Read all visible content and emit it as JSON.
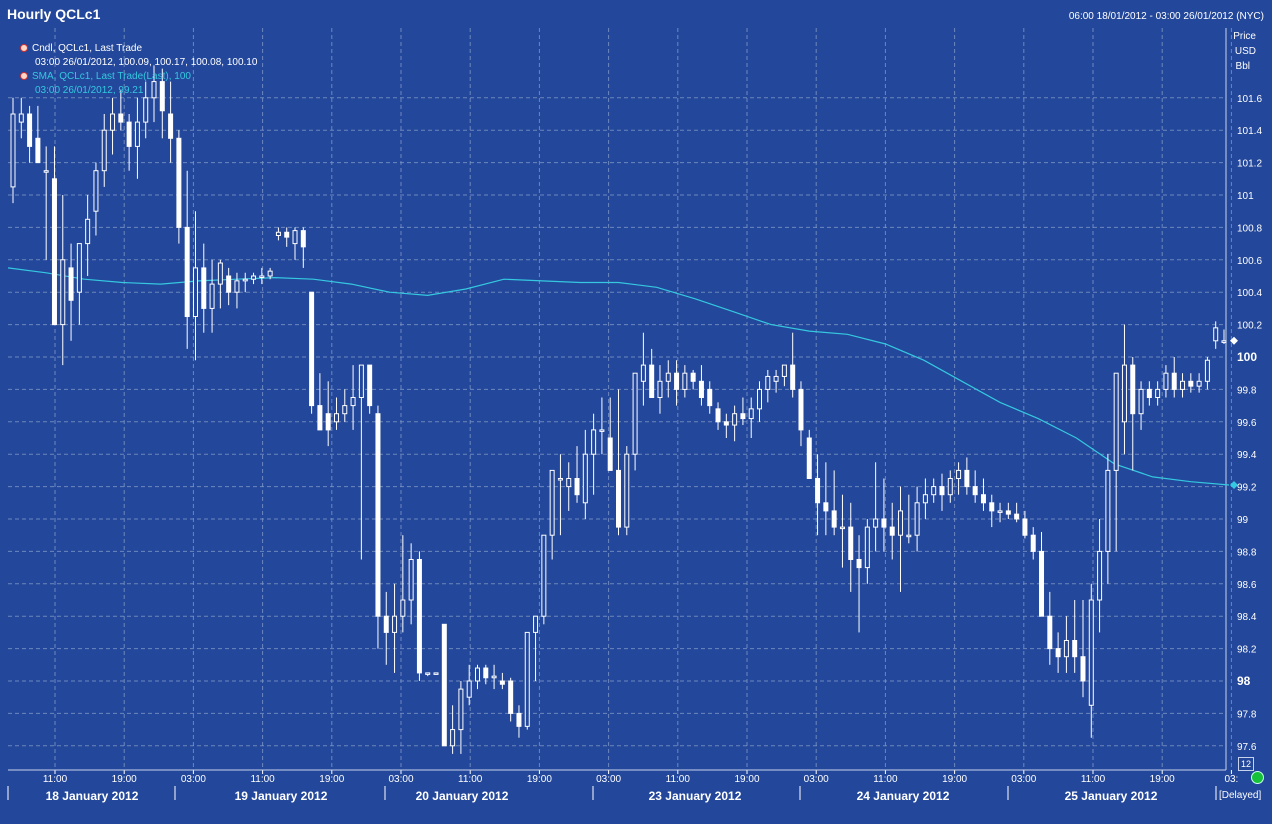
{
  "title": "Hourly QCLc1",
  "date_range": "06:00 18/01/2012 - 03:00 26/01/2012 (NYC)",
  "legend": {
    "candle_name": "Cndl, QCLc1, Last Trade",
    "candle_values": "03:00 26/01/2012, 100.09, 100.17, 100.08, 100.10",
    "sma_name": "SMA, QCLc1, Last Trade(Last), 100",
    "sma_values": "03:00 26/01/2012, 99.21"
  },
  "axis_units": [
    "Price",
    "USD",
    "Bbl"
  ],
  "badge": "12",
  "delayed": "[Delayed]",
  "colors": {
    "background": "#23479a",
    "candle": "#ffffff",
    "sma": "#35c8e0",
    "grid": "#7f97c6"
  },
  "chart_data": {
    "type": "candlestick",
    "ylim": [
      97.5,
      101.9
    ],
    "yticks": [
      "101.6",
      "101.4",
      "101.2",
      "101",
      "100.8",
      "100.6",
      "100.4",
      "100.2",
      "100",
      "99.8",
      "99.6",
      "99.4",
      "99.2",
      "99",
      "98.8",
      "98.6",
      "98.4",
      "98.2",
      "98",
      "97.8",
      "97.6"
    ],
    "ytick_values": [
      101.6,
      101.4,
      101.2,
      101,
      100.8,
      100.6,
      100.4,
      100.2,
      100,
      99.8,
      99.6,
      99.4,
      99.2,
      99,
      98.8,
      98.6,
      98.4,
      98.2,
      98,
      97.8,
      97.6
    ],
    "xticks": [
      "11:00",
      "19:00",
      "03:00",
      "11:00",
      "19:00",
      "03:00",
      "11:00",
      "19:00",
      "03:00",
      "11:00",
      "19:00",
      "03:00",
      "11:00",
      "19:00",
      "03:00",
      "11:00",
      "19:00",
      "03:"
    ],
    "dates": [
      "18 January 2012",
      "19 January 2012",
      "20 January 2012",
      "23 January 2012",
      "24 January 2012",
      "25 January 2012"
    ],
    "last_price_label": "100",
    "sma_last_label": "99.2",
    "sma_100": [
      100.55,
      100.52,
      100.48,
      100.46,
      100.45,
      100.47,
      100.48,
      100.49,
      100.48,
      100.45,
      100.4,
      100.38,
      100.42,
      100.48,
      100.47,
      100.46,
      100.46,
      100.43,
      100.36,
      100.28,
      100.2,
      100.16,
      100.14,
      100.08,
      99.98,
      99.85,
      99.72,
      99.62,
      99.5,
      99.34,
      99.26,
      99.23,
      99.21
    ],
    "candles": [
      {
        "o": 101.05,
        "h": 101.6,
        "l": 100.95,
        "c": 101.5
      },
      {
        "o": 101.45,
        "h": 101.6,
        "l": 101.35,
        "c": 101.5
      },
      {
        "o": 101.5,
        "h": 101.55,
        "l": 101.2,
        "c": 101.3
      },
      {
        "o": 101.35,
        "h": 101.55,
        "l": 101.2,
        "c": 101.2
      },
      {
        "o": 101.15,
        "h": 101.3,
        "l": 100.6,
        "c": 101.15
      },
      {
        "o": 101.1,
        "h": 101.3,
        "l": 100.2,
        "c": 100.2
      },
      {
        "o": 100.2,
        "h": 101.0,
        "l": 99.95,
        "c": 100.6
      },
      {
        "o": 100.55,
        "h": 100.7,
        "l": 100.1,
        "c": 100.35
      },
      {
        "o": 100.4,
        "h": 100.7,
        "l": 100.2,
        "c": 100.7
      },
      {
        "o": 100.7,
        "h": 101.0,
        "l": 100.5,
        "c": 100.85
      },
      {
        "o": 100.9,
        "h": 101.2,
        "l": 100.75,
        "c": 101.15
      },
      {
        "o": 101.15,
        "h": 101.5,
        "l": 101.05,
        "c": 101.4
      },
      {
        "o": 101.4,
        "h": 101.6,
        "l": 101.25,
        "c": 101.5
      },
      {
        "o": 101.5,
        "h": 101.65,
        "l": 101.4,
        "c": 101.45
      },
      {
        "o": 101.45,
        "h": 101.5,
        "l": 101.15,
        "c": 101.3
      },
      {
        "o": 101.3,
        "h": 101.6,
        "l": 101.1,
        "c": 101.45
      },
      {
        "o": 101.45,
        "h": 101.7,
        "l": 101.35,
        "c": 101.6
      },
      {
        "o": 101.6,
        "h": 101.8,
        "l": 101.45,
        "c": 101.7
      },
      {
        "o": 101.7,
        "h": 101.78,
        "l": 101.35,
        "c": 101.52
      },
      {
        "o": 101.5,
        "h": 101.7,
        "l": 101.2,
        "c": 101.35
      },
      {
        "o": 101.35,
        "h": 101.4,
        "l": 100.7,
        "c": 100.8
      },
      {
        "o": 100.8,
        "h": 101.15,
        "l": 100.05,
        "c": 100.25
      },
      {
        "o": 100.25,
        "h": 100.9,
        "l": 99.98,
        "c": 100.55
      },
      {
        "o": 100.55,
        "h": 100.7,
        "l": 100.15,
        "c": 100.3
      },
      {
        "o": 100.3,
        "h": 100.6,
        "l": 100.15,
        "c": 100.45
      },
      {
        "o": 100.45,
        "h": 100.6,
        "l": 100.3,
        "c": 100.58
      },
      {
        "o": 100.5,
        "h": 100.55,
        "l": 100.32,
        "c": 100.4
      },
      {
        "o": 100.4,
        "h": 100.52,
        "l": 100.3,
        "c": 100.47
      },
      {
        "o": 100.47,
        "h": 100.52,
        "l": 100.4,
        "c": 100.48
      },
      {
        "o": 100.48,
        "h": 100.52,
        "l": 100.45,
        "c": 100.5
      },
      {
        "o": 100.5,
        "h": 100.55,
        "l": 100.45,
        "c": 100.5
      },
      {
        "o": 100.5,
        "h": 100.55,
        "l": 100.48,
        "c": 100.53
      },
      {
        "o": 100.75,
        "h": 100.8,
        "l": 100.72,
        "c": 100.77
      },
      {
        "o": 100.77,
        "h": 100.8,
        "l": 100.68,
        "c": 100.74
      },
      {
        "o": 100.7,
        "h": 100.8,
        "l": 100.6,
        "c": 100.78
      },
      {
        "o": 100.78,
        "h": 100.8,
        "l": 100.55,
        "c": 100.68
      },
      {
        "o": 100.4,
        "h": 100.4,
        "l": 99.65,
        "c": 99.7
      },
      {
        "o": 99.7,
        "h": 99.9,
        "l": 99.55,
        "c": 99.55
      },
      {
        "o": 99.65,
        "h": 99.85,
        "l": 99.45,
        "c": 99.55
      },
      {
        "o": 99.6,
        "h": 99.75,
        "l": 99.55,
        "c": 99.65
      },
      {
        "o": 99.65,
        "h": 99.8,
        "l": 99.6,
        "c": 99.7
      },
      {
        "o": 99.7,
        "h": 99.95,
        "l": 99.55,
        "c": 99.75
      },
      {
        "o": 99.75,
        "h": 99.95,
        "l": 98.75,
        "c": 99.95
      },
      {
        "o": 99.95,
        "h": 99.95,
        "l": 99.65,
        "c": 99.7
      },
      {
        "o": 99.65,
        "h": 99.7,
        "l": 98.2,
        "c": 98.4
      },
      {
        "o": 98.4,
        "h": 98.55,
        "l": 98.1,
        "c": 98.3
      },
      {
        "o": 98.3,
        "h": 98.6,
        "l": 98.05,
        "c": 98.4
      },
      {
        "o": 98.4,
        "h": 98.9,
        "l": 98.3,
        "c": 98.5
      },
      {
        "o": 98.5,
        "h": 98.85,
        "l": 98.35,
        "c": 98.75
      },
      {
        "o": 98.75,
        "h": 98.8,
        "l": 98.0,
        "c": 98.05
      },
      {
        "o": 98.05,
        "h": 98.05,
        "l": 98.03,
        "c": 98.05
      },
      {
        "o": 98.05,
        "h": 98.05,
        "l": 98.04,
        "c": 98.05
      },
      {
        "o": 98.35,
        "h": 98.35,
        "l": 97.6,
        "c": 97.6
      },
      {
        "o": 97.6,
        "h": 97.85,
        "l": 97.55,
        "c": 97.7
      },
      {
        "o": 97.7,
        "h": 98.0,
        "l": 97.55,
        "c": 97.95
      },
      {
        "o": 97.9,
        "h": 98.1,
        "l": 97.85,
        "c": 98.0
      },
      {
        "o": 98.0,
        "h": 98.1,
        "l": 97.95,
        "c": 98.08
      },
      {
        "o": 98.08,
        "h": 98.1,
        "l": 97.98,
        "c": 98.02
      },
      {
        "o": 98.02,
        "h": 98.1,
        "l": 97.95,
        "c": 98.03
      },
      {
        "o": 98.0,
        "h": 98.05,
        "l": 97.95,
        "c": 97.98
      },
      {
        "o": 98.0,
        "h": 98.02,
        "l": 97.75,
        "c": 97.8
      },
      {
        "o": 97.8,
        "h": 97.85,
        "l": 97.65,
        "c": 97.72
      },
      {
        "o": 97.72,
        "h": 98.3,
        "l": 97.7,
        "c": 98.3
      },
      {
        "o": 98.3,
        "h": 98.4,
        "l": 98.0,
        "c": 98.4
      },
      {
        "o": 98.4,
        "h": 98.9,
        "l": 98.35,
        "c": 98.9
      },
      {
        "o": 98.9,
        "h": 99.3,
        "l": 98.75,
        "c": 99.3
      },
      {
        "o": 99.25,
        "h": 99.4,
        "l": 98.9,
        "c": 99.25
      },
      {
        "o": 99.2,
        "h": 99.35,
        "l": 99.05,
        "c": 99.25
      },
      {
        "o": 99.25,
        "h": 99.45,
        "l": 99.1,
        "c": 99.15
      },
      {
        "o": 99.1,
        "h": 99.55,
        "l": 99.0,
        "c": 99.4
      },
      {
        "o": 99.4,
        "h": 99.65,
        "l": 99.15,
        "c": 99.55
      },
      {
        "o": 99.55,
        "h": 99.75,
        "l": 99.4,
        "c": 99.55
      },
      {
        "o": 99.5,
        "h": 99.75,
        "l": 99.3,
        "c": 99.3
      },
      {
        "o": 99.3,
        "h": 99.8,
        "l": 98.9,
        "c": 98.95
      },
      {
        "o": 98.95,
        "h": 99.45,
        "l": 98.9,
        "c": 99.4
      },
      {
        "o": 99.4,
        "h": 99.9,
        "l": 99.3,
        "c": 99.9
      },
      {
        "o": 99.85,
        "h": 100.15,
        "l": 99.7,
        "c": 99.95
      },
      {
        "o": 99.95,
        "h": 100.05,
        "l": 99.75,
        "c": 99.75
      },
      {
        "o": 99.75,
        "h": 99.95,
        "l": 99.65,
        "c": 99.85
      },
      {
        "o": 99.85,
        "h": 99.98,
        "l": 99.75,
        "c": 99.9
      },
      {
        "o": 99.9,
        "h": 99.98,
        "l": 99.7,
        "c": 99.8
      },
      {
        "o": 99.8,
        "h": 99.95,
        "l": 99.75,
        "c": 99.9
      },
      {
        "o": 99.9,
        "h": 99.92,
        "l": 99.8,
        "c": 99.85
      },
      {
        "o": 99.85,
        "h": 99.95,
        "l": 99.7,
        "c": 99.75
      },
      {
        "o": 99.8,
        "h": 99.85,
        "l": 99.65,
        "c": 99.7
      },
      {
        "o": 99.68,
        "h": 99.72,
        "l": 99.55,
        "c": 99.6
      },
      {
        "o": 99.6,
        "h": 99.65,
        "l": 99.5,
        "c": 99.58
      },
      {
        "o": 99.58,
        "h": 99.7,
        "l": 99.48,
        "c": 99.65
      },
      {
        "o": 99.65,
        "h": 99.75,
        "l": 99.58,
        "c": 99.62
      },
      {
        "o": 99.62,
        "h": 99.75,
        "l": 99.5,
        "c": 99.68
      },
      {
        "o": 99.68,
        "h": 99.85,
        "l": 99.6,
        "c": 99.8
      },
      {
        "o": 99.8,
        "h": 99.92,
        "l": 99.72,
        "c": 99.88
      },
      {
        "o": 99.85,
        "h": 99.92,
        "l": 99.78,
        "c": 99.88
      },
      {
        "o": 99.88,
        "h": 99.95,
        "l": 99.82,
        "c": 99.95
      },
      {
        "o": 99.95,
        "h": 100.15,
        "l": 99.75,
        "c": 99.8
      },
      {
        "o": 99.8,
        "h": 99.85,
        "l": 99.45,
        "c": 99.55
      },
      {
        "o": 99.5,
        "h": 99.55,
        "l": 99.25,
        "c": 99.25
      },
      {
        "o": 99.25,
        "h": 99.4,
        "l": 98.9,
        "c": 99.1
      },
      {
        "o": 99.1,
        "h": 99.35,
        "l": 98.9,
        "c": 99.05
      },
      {
        "o": 99.05,
        "h": 99.3,
        "l": 98.9,
        "c": 98.95
      },
      {
        "o": 98.95,
        "h": 99.15,
        "l": 98.7,
        "c": 98.95
      },
      {
        "o": 98.95,
        "h": 99.1,
        "l": 98.55,
        "c": 98.75
      },
      {
        "o": 98.75,
        "h": 98.9,
        "l": 98.3,
        "c": 98.7
      },
      {
        "o": 98.7,
        "h": 99.0,
        "l": 98.6,
        "c": 98.95
      },
      {
        "o": 98.95,
        "h": 99.35,
        "l": 98.8,
        "c": 99.0
      },
      {
        "o": 99.0,
        "h": 99.25,
        "l": 98.8,
        "c": 98.95
      },
      {
        "o": 98.95,
        "h": 99.1,
        "l": 98.75,
        "c": 98.9
      },
      {
        "o": 98.9,
        "h": 99.2,
        "l": 98.55,
        "c": 99.05
      },
      {
        "o": 98.9,
        "h": 99.15,
        "l": 98.85,
        "c": 98.9
      },
      {
        "o": 98.9,
        "h": 99.2,
        "l": 98.8,
        "c": 99.1
      },
      {
        "o": 99.1,
        "h": 99.25,
        "l": 99.0,
        "c": 99.15
      },
      {
        "o": 99.15,
        "h": 99.25,
        "l": 99.1,
        "c": 99.2
      },
      {
        "o": 99.2,
        "h": 99.28,
        "l": 99.05,
        "c": 99.15
      },
      {
        "o": 99.15,
        "h": 99.3,
        "l": 99.1,
        "c": 99.25
      },
      {
        "o": 99.25,
        "h": 99.35,
        "l": 99.15,
        "c": 99.3
      },
      {
        "o": 99.3,
        "h": 99.38,
        "l": 99.15,
        "c": 99.2
      },
      {
        "o": 99.2,
        "h": 99.3,
        "l": 99.1,
        "c": 99.15
      },
      {
        "o": 99.15,
        "h": 99.25,
        "l": 99.05,
        "c": 99.1
      },
      {
        "o": 99.1,
        "h": 99.15,
        "l": 98.95,
        "c": 99.05
      },
      {
        "o": 99.05,
        "h": 99.1,
        "l": 98.98,
        "c": 99.05
      },
      {
        "o": 99.05,
        "h": 99.1,
        "l": 99.0,
        "c": 99.03
      },
      {
        "o": 99.03,
        "h": 99.1,
        "l": 98.98,
        "c": 99.0
      },
      {
        "o": 99.0,
        "h": 99.05,
        "l": 98.88,
        "c": 98.9
      },
      {
        "o": 98.9,
        "h": 98.95,
        "l": 98.75,
        "c": 98.8
      },
      {
        "o": 98.8,
        "h": 98.92,
        "l": 98.4,
        "c": 98.4
      },
      {
        "o": 98.4,
        "h": 98.55,
        "l": 98.1,
        "c": 98.2
      },
      {
        "o": 98.2,
        "h": 98.3,
        "l": 98.05,
        "c": 98.15
      },
      {
        "o": 98.15,
        "h": 98.4,
        "l": 98.05,
        "c": 98.25
      },
      {
        "o": 98.25,
        "h": 98.5,
        "l": 98.05,
        "c": 98.15
      },
      {
        "o": 98.15,
        "h": 98.5,
        "l": 97.9,
        "c": 98.0
      },
      {
        "o": 97.85,
        "h": 98.6,
        "l": 97.65,
        "c": 98.5
      },
      {
        "o": 98.5,
        "h": 99.0,
        "l": 98.3,
        "c": 98.8
      },
      {
        "o": 98.8,
        "h": 99.4,
        "l": 98.6,
        "c": 99.3
      },
      {
        "o": 99.3,
        "h": 99.9,
        "l": 98.8,
        "c": 99.9
      },
      {
        "o": 99.6,
        "h": 100.2,
        "l": 99.4,
        "c": 99.95
      },
      {
        "o": 99.95,
        "h": 100.0,
        "l": 99.3,
        "c": 99.65
      },
      {
        "o": 99.65,
        "h": 99.85,
        "l": 99.55,
        "c": 99.8
      },
      {
        "o": 99.8,
        "h": 99.85,
        "l": 99.7,
        "c": 99.75
      },
      {
        "o": 99.75,
        "h": 99.85,
        "l": 99.7,
        "c": 99.8
      },
      {
        "o": 99.8,
        "h": 99.95,
        "l": 99.75,
        "c": 99.9
      },
      {
        "o": 99.9,
        "h": 100.0,
        "l": 99.75,
        "c": 99.8
      },
      {
        "o": 99.8,
        "h": 99.9,
        "l": 99.75,
        "c": 99.85
      },
      {
        "o": 99.85,
        "h": 99.9,
        "l": 99.78,
        "c": 99.82
      },
      {
        "o": 99.82,
        "h": 99.9,
        "l": 99.78,
        "c": 99.85
      },
      {
        "o": 99.85,
        "h": 100.0,
        "l": 99.8,
        "c": 99.98
      },
      {
        "o": 100.1,
        "h": 100.22,
        "l": 100.05,
        "c": 100.18
      },
      {
        "o": 100.09,
        "h": 100.17,
        "l": 100.08,
        "c": 100.1
      }
    ]
  }
}
